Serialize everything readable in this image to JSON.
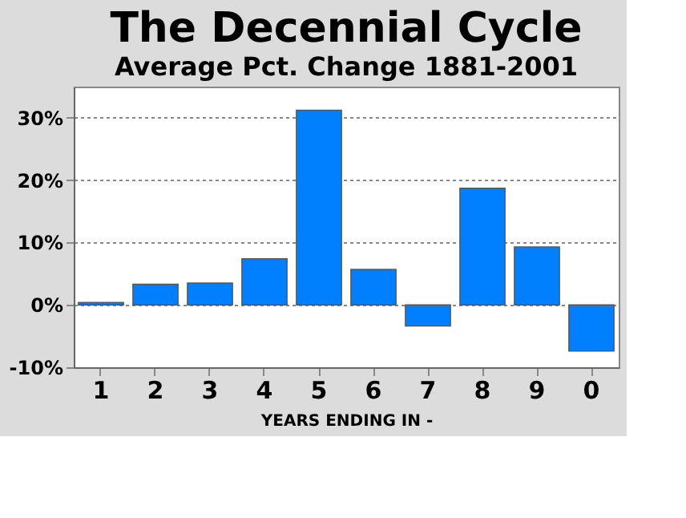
{
  "chart_data": {
    "type": "bar",
    "title": "The Decennial Cycle",
    "subtitle": "Average Pct. Change 1881-2001",
    "xlabel": "YEARS ENDING IN -",
    "categories": [
      "1",
      "2",
      "3",
      "4",
      "5",
      "6",
      "7",
      "8",
      "9",
      "0"
    ],
    "values": [
      0.4,
      3.3,
      3.5,
      7.4,
      31.2,
      5.7,
      -3.4,
      18.7,
      9.3,
      -7.4
    ],
    "color": "#0080ff",
    "ylim": [
      -10,
      35
    ],
    "yticks": [
      {
        "value": -10,
        "label": "-10%"
      },
      {
        "value": 0,
        "label": "0%"
      },
      {
        "value": 10,
        "label": "10%"
      },
      {
        "value": 20,
        "label": "20%"
      },
      {
        "value": 30,
        "label": "30%"
      }
    ],
    "grid": "y"
  }
}
